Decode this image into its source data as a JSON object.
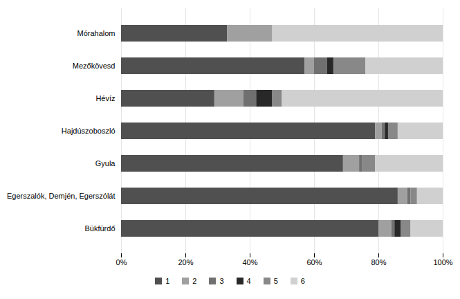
{
  "chart_data": {
    "type": "bar",
    "orientation": "horizontal",
    "stacked": true,
    "categories": [
      "Bükfürdő",
      "Egerszalók, Demjén, Egerszólát",
      "Gyula",
      "Hajdúszoboszló",
      "Hévíz",
      "Mezőkövesd",
      "Mórahalom"
    ],
    "series": [
      {
        "name": "1",
        "color": "#505050",
        "values": [
          80,
          86,
          69,
          79,
          29,
          57,
          33
        ]
      },
      {
        "name": "2",
        "color": "#a0a0a0",
        "values": [
          4,
          3,
          5,
          2,
          9,
          3,
          14
        ]
      },
      {
        "name": "3",
        "color": "#707070",
        "values": [
          1,
          1,
          1,
          1,
          4,
          4,
          0
        ]
      },
      {
        "name": "4",
        "color": "#282828",
        "values": [
          2,
          0,
          0,
          1,
          5,
          2,
          0
        ]
      },
      {
        "name": "5",
        "color": "#888888",
        "values": [
          3,
          2,
          4,
          3,
          3,
          10,
          0
        ]
      },
      {
        "name": "6",
        "color": "#d0d0d0",
        "values": [
          10,
          8,
          21,
          14,
          50,
          24,
          53
        ]
      }
    ],
    "xlim": [
      0,
      100
    ],
    "xticks": [
      {
        "value": 0,
        "label": "0%"
      },
      {
        "value": 20,
        "label": "20%"
      },
      {
        "value": 40,
        "label": "40%"
      },
      {
        "value": 60,
        "label": "60%"
      },
      {
        "value": 80,
        "label": "80%"
      },
      {
        "value": 100,
        "label": "100%"
      }
    ],
    "grid": true,
    "legend": "bottom"
  }
}
